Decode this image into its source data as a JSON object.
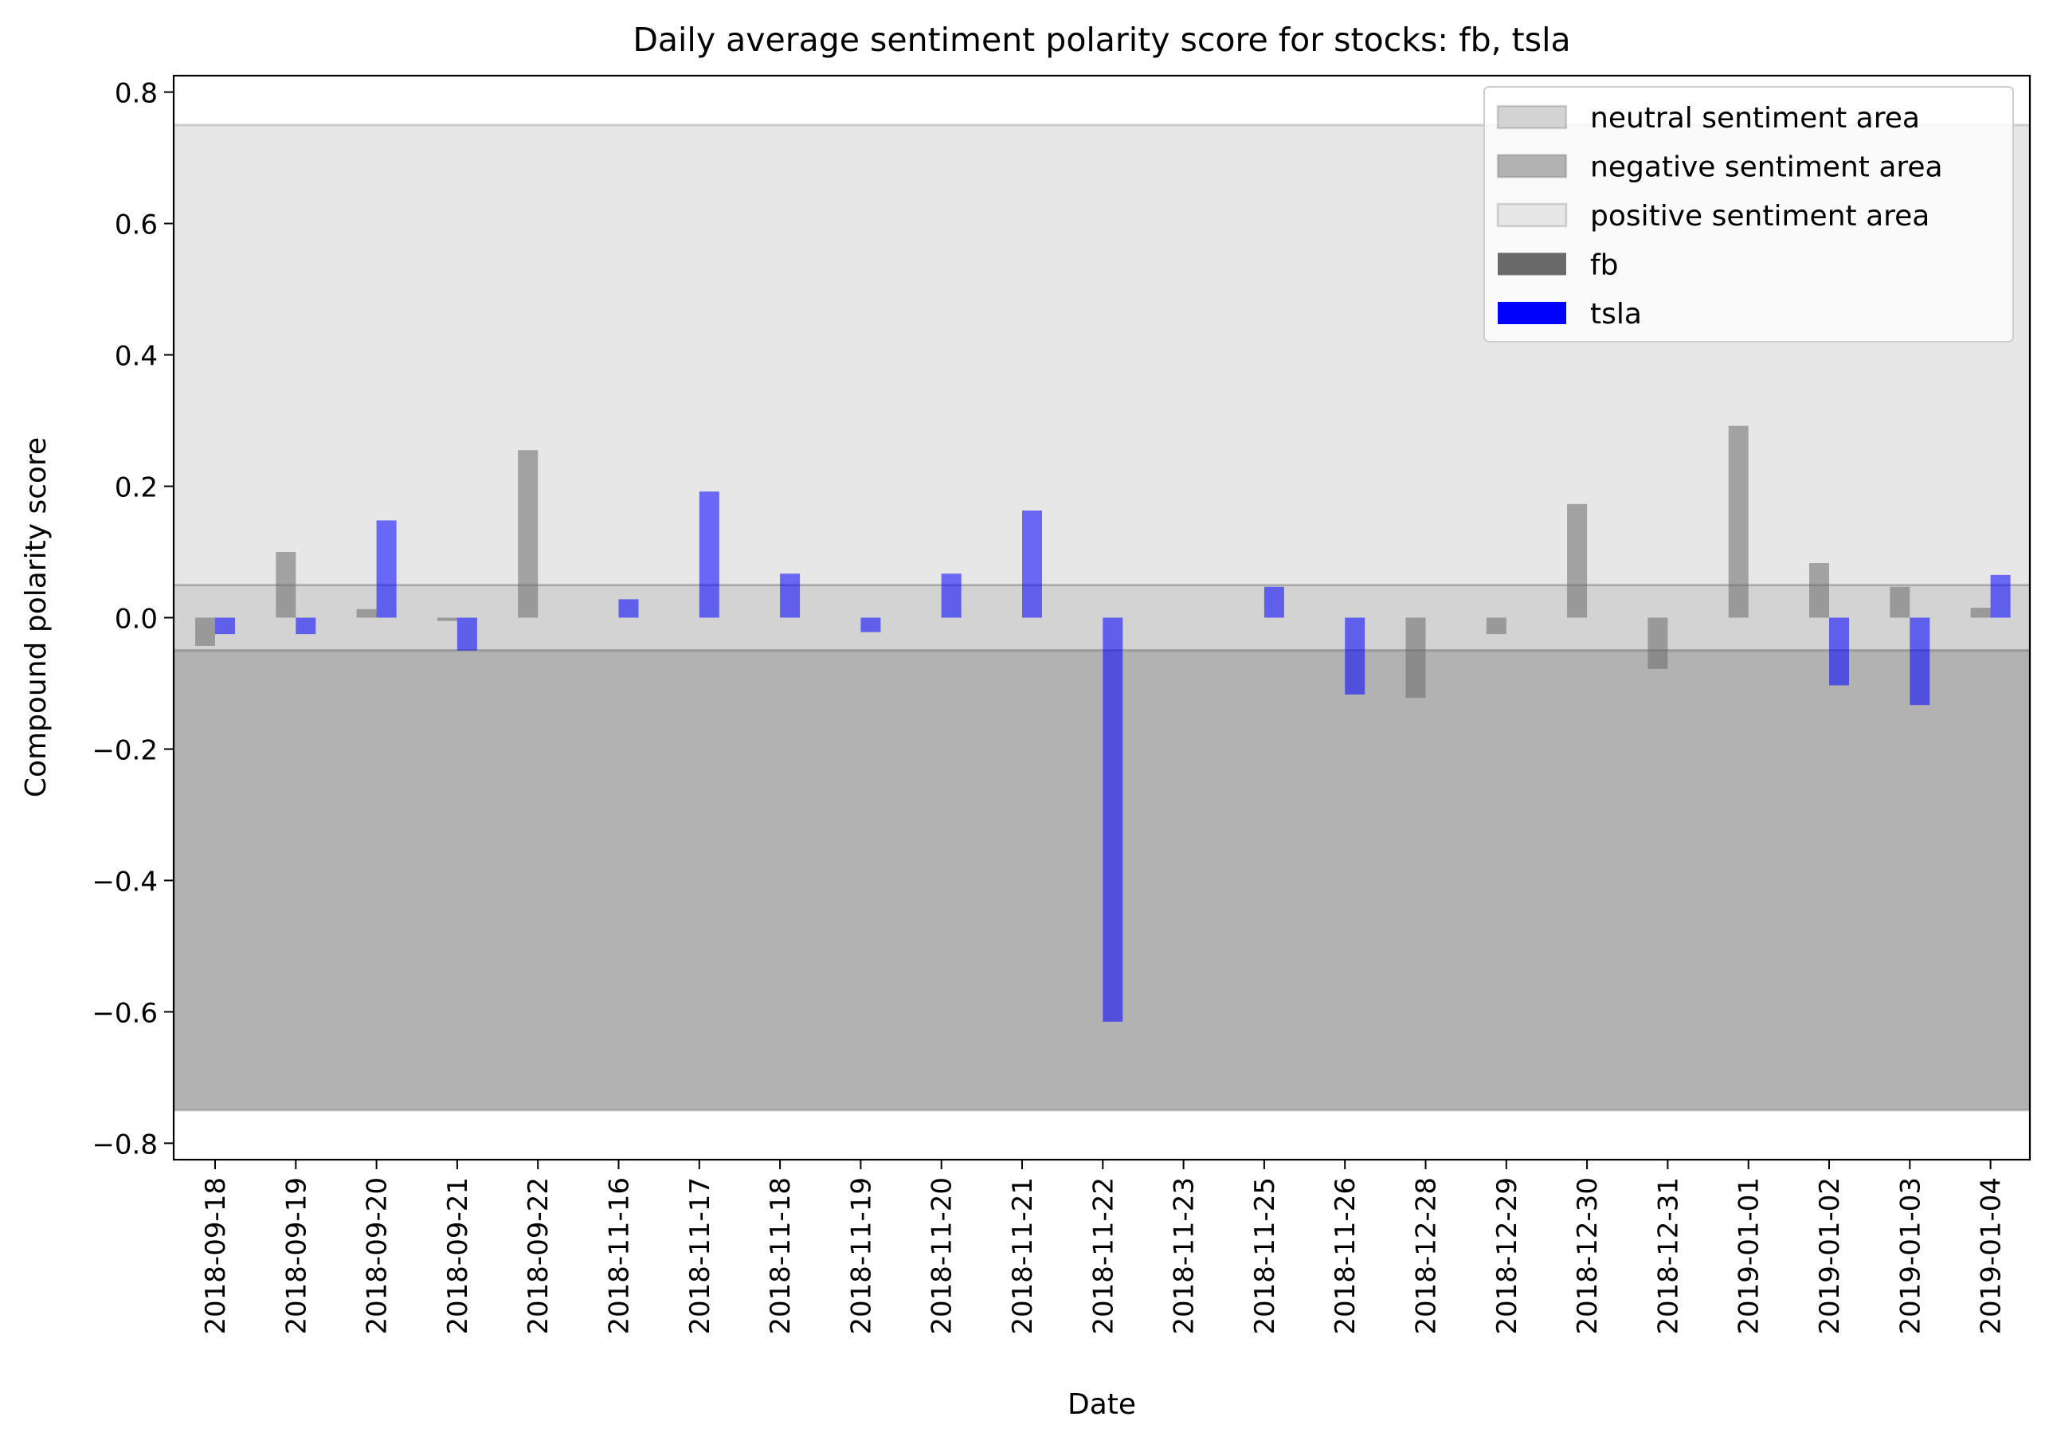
{
  "chart_data": {
    "type": "bar",
    "title": "Daily average sentiment polarity score for stocks: fb, tsla",
    "xlabel": "Date",
    "ylabel": "Compound polarity score",
    "ylim": [
      -0.825,
      0.825
    ],
    "yticks": [
      -0.8,
      -0.6,
      -0.4,
      -0.2,
      0.0,
      0.2,
      0.4,
      0.6,
      0.8
    ],
    "ytick_labels": [
      "−0.8",
      "−0.6",
      "−0.4",
      "−0.2",
      "0.0",
      "0.2",
      "0.4",
      "0.6",
      "0.8"
    ],
    "grid": false,
    "legend_position": "top-right",
    "categories": [
      "2018-09-18",
      "2018-09-19",
      "2018-09-20",
      "2018-09-21",
      "2018-09-22",
      "2018-11-16",
      "2018-11-17",
      "2018-11-18",
      "2018-11-19",
      "2018-11-20",
      "2018-11-21",
      "2018-11-22",
      "2018-11-23",
      "2018-11-25",
      "2018-11-26",
      "2018-12-28",
      "2018-12-29",
      "2018-12-30",
      "2018-12-31",
      "2019-01-01",
      "2019-01-02",
      "2019-01-03",
      "2019-01-04"
    ],
    "series": [
      {
        "name": "fb",
        "color": "#696969",
        "values": [
          -0.043,
          0.1,
          0.013,
          -0.005,
          0.255,
          null,
          null,
          null,
          null,
          null,
          null,
          null,
          null,
          null,
          null,
          -0.122,
          -0.025,
          0.173,
          -0.078,
          0.292,
          0.083,
          0.047,
          0.015
        ]
      },
      {
        "name": "tsla",
        "color": "#0000ff",
        "values": [
          -0.025,
          -0.025,
          0.148,
          -0.05,
          null,
          0.028,
          0.192,
          0.067,
          -0.022,
          0.067,
          0.163,
          -0.615,
          null,
          0.047,
          -0.117,
          null,
          null,
          null,
          null,
          null,
          -0.103,
          -0.133,
          0.065
        ]
      }
    ],
    "regions": [
      {
        "name": "neutral sentiment area",
        "from": -0.05,
        "to": 0.05,
        "color": "#d3d3d3"
      },
      {
        "name": "negative sentiment area",
        "from": -0.75,
        "to": -0.05,
        "color": "#b2b2b2"
      },
      {
        "name": "positive sentiment area",
        "from": 0.05,
        "to": 0.75,
        "color": "#e7e7e7"
      }
    ],
    "legend": [
      {
        "label": "neutral sentiment area",
        "color": "#d3d3d3"
      },
      {
        "label": "negative sentiment area",
        "color": "#b2b2b2"
      },
      {
        "label": "positive sentiment area",
        "color": "#e7e7e7"
      },
      {
        "label": "fb",
        "color": "#696969"
      },
      {
        "label": "tsla",
        "color": "#0000ff"
      }
    ]
  }
}
